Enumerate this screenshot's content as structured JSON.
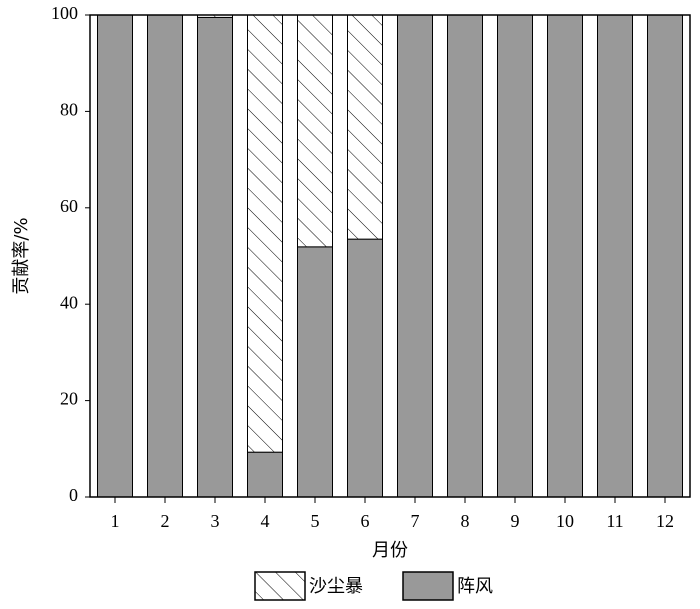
{
  "chart_data": {
    "type": "stacked_bar",
    "categories": [
      "1",
      "2",
      "3",
      "4",
      "5",
      "6",
      "7",
      "8",
      "9",
      "10",
      "11",
      "12"
    ],
    "series": [
      {
        "name": "阵风",
        "color": "#999999",
        "hatch": false,
        "values": [
          100,
          100,
          99.5,
          9.3,
          51.9,
          53.5,
          100,
          100,
          100,
          100,
          100,
          100
        ]
      },
      {
        "name": "沙尘暴",
        "color": "#ffffff",
        "hatch": true,
        "values": [
          0,
          0,
          0.5,
          90.7,
          48.1,
          46.5,
          0,
          0,
          0,
          0,
          0,
          0
        ]
      }
    ],
    "xlabel": "月份",
    "ylabel": "贡献率/%",
    "ylim": [
      0,
      100
    ],
    "yticks": [
      0,
      20,
      40,
      60,
      80,
      100
    ],
    "grid": false,
    "legend": "bottom"
  }
}
